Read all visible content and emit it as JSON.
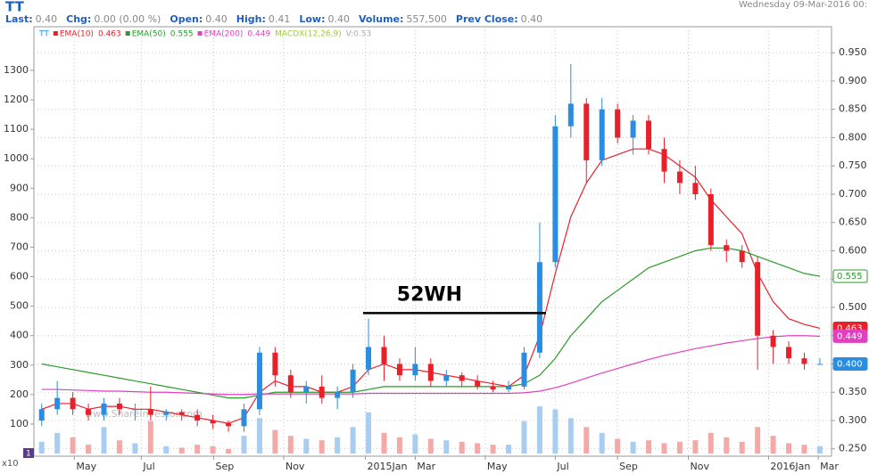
{
  "chart_data": {
    "type": "candlestick",
    "symbol": "TT",
    "date": "Wednesday 09-Mar-2016 00:",
    "info": [
      {
        "label": "Last:",
        "value": "0.40"
      },
      {
        "label": "Chg:",
        "value": "0.00 (0.00 %)"
      },
      {
        "label": "Open:",
        "value": "0.40"
      },
      {
        "label": "High:",
        "value": "0.41"
      },
      {
        "label": "Low:",
        "value": "0.40"
      },
      {
        "label": "Volume:",
        "value": "557,500"
      },
      {
        "label": "Prev Close:",
        "value": "0.40"
      }
    ],
    "indicator": {
      "name": "MACDX(12,26,9)",
      "text": "V:0.53",
      "color": "#9acd32"
    },
    "watermark": "www.ShareInvestor.com",
    "pane_label": "1",
    "volume_unit": "x10",
    "annotation": {
      "text": "52WH",
      "value": 0.49,
      "x": [
        41.3,
        64.8
      ]
    },
    "x": [
      0,
      2,
      4,
      6,
      8,
      10,
      12,
      14,
      16,
      18,
      20,
      22,
      24,
      26,
      28,
      30,
      32,
      34,
      36,
      38,
      40,
      42,
      44,
      46,
      48,
      50,
      52,
      54,
      56,
      58,
      60,
      62,
      64,
      66,
      68,
      70,
      72,
      74,
      76,
      78,
      80,
      82,
      84,
      86,
      88,
      90,
      92,
      94,
      96,
      98,
      100
    ],
    "open": [
      0.3,
      0.32,
      0.34,
      0.32,
      0.31,
      0.33,
      0.32,
      0.32,
      0.31,
      0.315,
      0.31,
      0.3,
      0.295,
      0.29,
      0.32,
      0.42,
      0.38,
      0.35,
      0.36,
      0.34,
      0.35,
      0.39,
      0.43,
      0.4,
      0.38,
      0.4,
      0.37,
      0.38,
      0.37,
      0.36,
      0.355,
      0.36,
      0.42,
      0.58,
      0.82,
      0.86,
      0.76,
      0.85,
      0.8,
      0.83,
      0.78,
      0.74,
      0.72,
      0.7,
      0.61,
      0.6,
      0.58,
      0.45,
      0.43,
      0.41,
      0.4
    ],
    "high": [
      0.33,
      0.37,
      0.35,
      0.33,
      0.34,
      0.34,
      0.33,
      0.36,
      0.32,
      0.32,
      0.32,
      0.31,
      0.3,
      0.33,
      0.43,
      0.43,
      0.39,
      0.37,
      0.38,
      0.36,
      0.4,
      0.48,
      0.45,
      0.41,
      0.43,
      0.41,
      0.39,
      0.385,
      0.38,
      0.37,
      0.37,
      0.43,
      0.65,
      0.84,
      0.93,
      0.87,
      0.87,
      0.86,
      0.84,
      0.84,
      0.8,
      0.76,
      0.75,
      0.71,
      0.62,
      0.61,
      0.59,
      0.46,
      0.44,
      0.42,
      0.41
    ],
    "low": [
      0.29,
      0.31,
      0.31,
      0.3,
      0.3,
      0.31,
      0.3,
      0.3,
      0.3,
      0.3,
      0.29,
      0.285,
      0.28,
      0.28,
      0.31,
      0.36,
      0.34,
      0.33,
      0.33,
      0.32,
      0.34,
      0.38,
      0.37,
      0.37,
      0.37,
      0.36,
      0.36,
      0.36,
      0.355,
      0.35,
      0.35,
      0.355,
      0.41,
      0.57,
      0.8,
      0.72,
      0.75,
      0.79,
      0.77,
      0.77,
      0.72,
      0.7,
      0.69,
      0.6,
      0.58,
      0.57,
      0.39,
      0.4,
      0.4,
      0.39,
      0.4
    ],
    "close": [
      0.32,
      0.34,
      0.32,
      0.31,
      0.33,
      0.32,
      0.32,
      0.31,
      0.315,
      0.31,
      0.3,
      0.295,
      0.29,
      0.32,
      0.42,
      0.38,
      0.35,
      0.36,
      0.34,
      0.35,
      0.39,
      0.43,
      0.4,
      0.38,
      0.4,
      0.37,
      0.38,
      0.37,
      0.36,
      0.355,
      0.36,
      0.42,
      0.58,
      0.82,
      0.86,
      0.76,
      0.85,
      0.8,
      0.83,
      0.78,
      0.74,
      0.72,
      0.7,
      0.61,
      0.6,
      0.58,
      0.45,
      0.43,
      0.41,
      0.4,
      0.4
    ],
    "volume": [
      40,
      70,
      55,
      30,
      90,
      45,
      35,
      110,
      25,
      20,
      30,
      25,
      15,
      60,
      120,
      80,
      60,
      50,
      45,
      55,
      90,
      140,
      70,
      55,
      65,
      50,
      45,
      40,
      35,
      30,
      30,
      110,
      160,
      150,
      120,
      90,
      70,
      50,
      40,
      45,
      35,
      40,
      45,
      70,
      55,
      40,
      90,
      60,
      35,
      30,
      25
    ],
    "up_color": "#2a8de0",
    "down_color": "#e8202a",
    "vol_up_color": "#a9cdf0",
    "vol_down_color": "#f4a9a9",
    "series": [
      {
        "name": "EMA(10)",
        "color": "#e8202a",
        "label": "0.463",
        "values": [
          0.32,
          0.33,
          0.33,
          0.32,
          0.325,
          0.325,
          0.32,
          0.32,
          0.315,
          0.31,
          0.305,
          0.3,
          0.295,
          0.305,
          0.35,
          0.37,
          0.36,
          0.36,
          0.35,
          0.35,
          0.36,
          0.39,
          0.4,
          0.39,
          0.39,
          0.385,
          0.38,
          0.375,
          0.37,
          0.365,
          0.36,
          0.38,
          0.45,
          0.56,
          0.66,
          0.72,
          0.76,
          0.77,
          0.78,
          0.78,
          0.77,
          0.75,
          0.73,
          0.69,
          0.66,
          0.63,
          0.56,
          0.51,
          0.48,
          0.47,
          0.463
        ]
      },
      {
        "name": "EMA(50)",
        "color": "#2a9a2a",
        "label": "0.555",
        "values": [
          0.4,
          0.395,
          0.39,
          0.385,
          0.38,
          0.375,
          0.37,
          0.365,
          0.36,
          0.355,
          0.35,
          0.345,
          0.34,
          0.34,
          0.345,
          0.35,
          0.35,
          0.35,
          0.35,
          0.35,
          0.35,
          0.355,
          0.36,
          0.36,
          0.36,
          0.36,
          0.36,
          0.36,
          0.36,
          0.36,
          0.36,
          0.365,
          0.38,
          0.41,
          0.45,
          0.48,
          0.51,
          0.53,
          0.55,
          0.57,
          0.58,
          0.59,
          0.6,
          0.605,
          0.605,
          0.6,
          0.59,
          0.58,
          0.57,
          0.56,
          0.555
        ]
      },
      {
        "name": "EMA(200)",
        "color": "#e040c0",
        "label": "0.449",
        "values": [
          0.355,
          0.355,
          0.354,
          0.353,
          0.352,
          0.352,
          0.351,
          0.35,
          0.35,
          0.349,
          0.348,
          0.347,
          0.346,
          0.346,
          0.347,
          0.347,
          0.347,
          0.347,
          0.347,
          0.347,
          0.347,
          0.348,
          0.348,
          0.348,
          0.348,
          0.348,
          0.348,
          0.348,
          0.348,
          0.348,
          0.348,
          0.349,
          0.352,
          0.358,
          0.366,
          0.375,
          0.384,
          0.392,
          0.4,
          0.408,
          0.415,
          0.421,
          0.427,
          0.432,
          0.437,
          0.441,
          0.445,
          0.448,
          0.45,
          0.45,
          0.449
        ]
      }
    ],
    "last": {
      "value": 0.4,
      "label": "0.400",
      "color": "#2a8de0"
    },
    "xlim": [
      -1,
      101.5
    ],
    "xticks": [
      {
        "value": 4.2,
        "label": "May"
      },
      {
        "value": 12.8,
        "label": "Jul"
      },
      {
        "value": 22.1,
        "label": "Sep"
      },
      {
        "value": 31.1,
        "label": "Nov"
      },
      {
        "value": 41.6,
        "label": "2015Jan"
      },
      {
        "value": 48.0,
        "label": "Mar"
      },
      {
        "value": 57.0,
        "label": "May"
      },
      {
        "value": 66.0,
        "label": "Jul"
      },
      {
        "value": 74.0,
        "label": "Sep"
      },
      {
        "value": 83.1,
        "label": "Nov"
      },
      {
        "value": 93.4,
        "label": "2016Jan"
      },
      {
        "value": 99.8,
        "label": "Mar"
      }
    ],
    "ylim": [
      -9,
      1448
    ],
    "yticks": [
      100,
      200,
      300,
      400,
      500,
      600,
      700,
      800,
      900,
      1000,
      1100,
      1200,
      1300
    ],
    "y2lim": [
      0.237,
      0.996
    ],
    "y2ticks": [
      {
        "value": 0.25,
        "label": "0.250"
      },
      {
        "value": 0.3,
        "label": "0.300"
      },
      {
        "value": 0.35,
        "label": "0.350"
      },
      {
        "value": 0.4,
        "label": "0.400"
      },
      {
        "value": 0.45,
        "label": "0.450"
      },
      {
        "value": 0.5,
        "label": "0.500"
      },
      {
        "value": 0.55,
        "label": "0.550"
      },
      {
        "value": 0.6,
        "label": "0.600"
      },
      {
        "value": 0.65,
        "label": "0.650"
      },
      {
        "value": 0.7,
        "label": "0.700"
      },
      {
        "value": 0.75,
        "label": "0.750"
      },
      {
        "value": 0.8,
        "label": "0.800"
      },
      {
        "value": 0.85,
        "label": "0.850"
      },
      {
        "value": 0.9,
        "label": "0.900"
      },
      {
        "value": 0.95,
        "label": "0.950"
      }
    ],
    "grid": true
  }
}
